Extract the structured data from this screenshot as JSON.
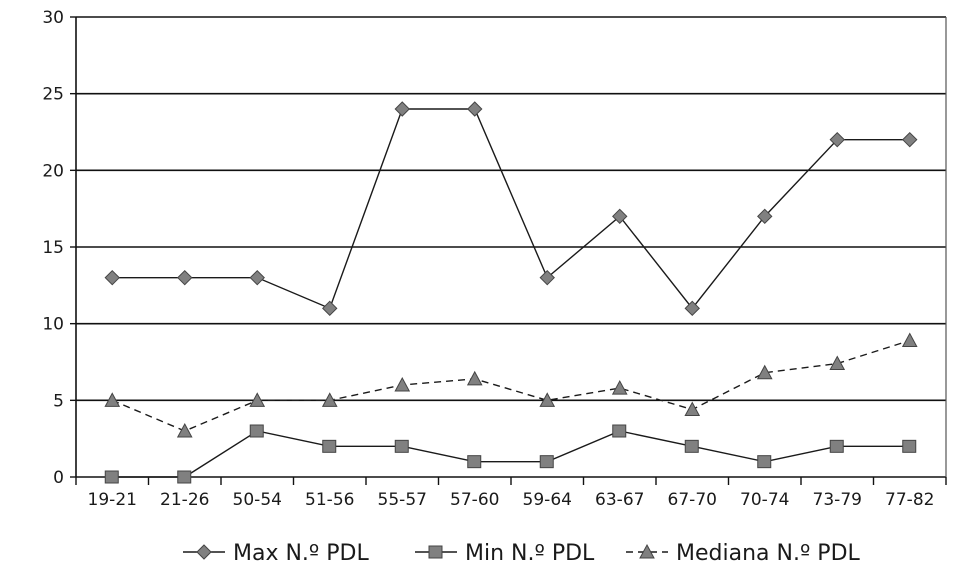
{
  "chart_data": {
    "type": "line",
    "title": "",
    "xlabel": "",
    "ylabel": "",
    "ylim": [
      0,
      30
    ],
    "yticks": [
      0,
      5,
      10,
      15,
      20,
      25,
      30
    ],
    "grid": "horizontal",
    "legend_position": "bottom",
    "categories": [
      "19-21",
      "21-26",
      "50-54",
      "51-56",
      "55-57",
      "57-60",
      "59-64",
      "63-67",
      "67-70",
      "70-74",
      "73-79",
      "77-82"
    ],
    "series": [
      {
        "name": "Max N.º PDL",
        "marker": "diamond",
        "line": "solid",
        "color": "#808080",
        "values": [
          13,
          13,
          13,
          11,
          24,
          24,
          13,
          17,
          11,
          17,
          22,
          22
        ]
      },
      {
        "name": "Min N.º PDL",
        "marker": "square",
        "line": "solid",
        "color": "#808080",
        "values": [
          0,
          0,
          3,
          2,
          2,
          1,
          1,
          3,
          2,
          1,
          2,
          2
        ]
      },
      {
        "name": "Mediana N.º PDL",
        "marker": "triangle",
        "line": "dashed",
        "color": "#808080",
        "values": [
          5,
          3,
          5,
          5,
          6,
          6.4,
          5,
          5.8,
          4.4,
          6.8,
          7.4,
          8.9
        ]
      }
    ]
  }
}
